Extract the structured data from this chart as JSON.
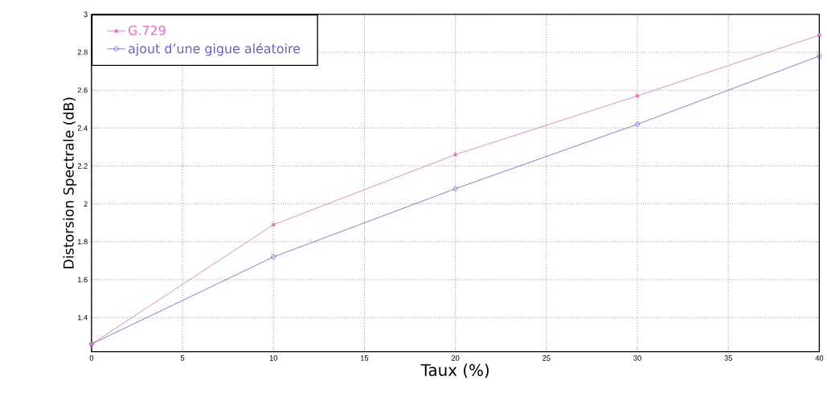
{
  "chart_data": {
    "type": "line",
    "xlabel": "Taux (%)",
    "ylabel": "Distorsion Spectrale (dB)",
    "x": [
      0,
      10,
      20,
      30,
      40
    ],
    "series": [
      {
        "name": "G.729",
        "color": "#e070c0",
        "marker": "star",
        "values": [
          1.26,
          1.89,
          2.26,
          2.57,
          2.89
        ]
      },
      {
        "name": "ajout d’une gigue aléatoire",
        "color": "#6060d0",
        "marker": "circle",
        "values": [
          1.26,
          1.72,
          2.08,
          2.42,
          2.78
        ]
      }
    ],
    "xlim": [
      0,
      40
    ],
    "ylim": [
      1.22,
      3
    ],
    "xticks": [
      0,
      5,
      10,
      15,
      20,
      25,
      30,
      35,
      40
    ],
    "yticks": [
      1.4,
      1.6,
      1.8,
      2,
      2.2,
      2.4,
      2.6,
      2.8,
      3
    ],
    "grid": true,
    "legend": "top left",
    "line_style": "solid"
  }
}
